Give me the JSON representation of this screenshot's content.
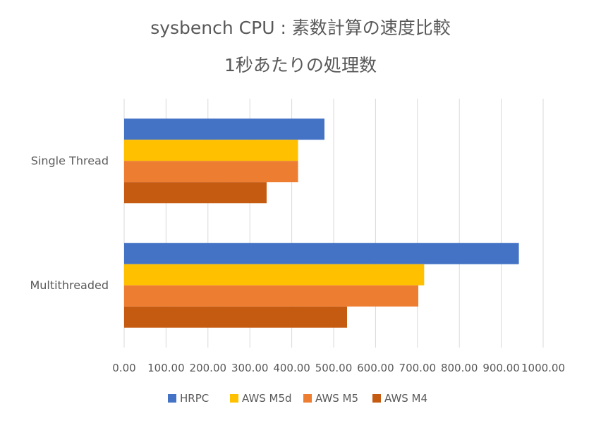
{
  "chart_data": {
    "type": "bar",
    "orientation": "horizontal",
    "title": "sysbench CPU : 素数計算の速度比較",
    "subtitle": "1秒あたりの処理数",
    "categories": [
      "Single Thread",
      "Multithreaded"
    ],
    "series": [
      {
        "name": "HRPC",
        "color": "#4472C4",
        "values": [
          478,
          942
        ]
      },
      {
        "name": "AWS M5d",
        "color": "#FFC000",
        "values": [
          415,
          716
        ]
      },
      {
        "name": "AWS M5",
        "color": "#ED7D31",
        "values": [
          415,
          702
        ]
      },
      {
        "name": "AWS M4",
        "color": "#C55A11",
        "values": [
          340,
          532
        ]
      }
    ],
    "xlim": [
      0,
      1000
    ],
    "xticks": [
      "0.00",
      "100.00",
      "200.00",
      "300.00",
      "400.00",
      "500.00",
      "600.00",
      "700.00",
      "800.00",
      "900.00",
      "1000.00"
    ],
    "grid": true,
    "legend": "bottom"
  }
}
